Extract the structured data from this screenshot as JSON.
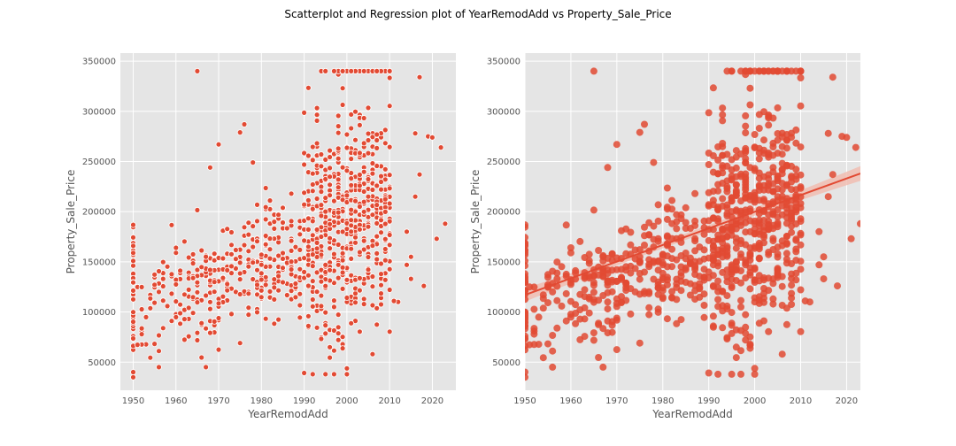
{
  "figure": {
    "suptitle": "Scatterplot and Regression plot of YearRemodAdd vs Property_Sale_Price"
  },
  "colors": {
    "background": "#e5e5e5",
    "grid": "#ffffff",
    "point_fill": "#e24a33",
    "point_edge": "#ffffff",
    "regression_line": "#e24a33",
    "confidence_band": "#f2b7a9"
  },
  "chart_data": [
    {
      "type": "scatter",
      "title": "",
      "xlabel": "YearRemodAdd",
      "ylabel": "Property_Sale_Price",
      "xlim": [
        1947,
        2025.5
      ],
      "ylim": [
        22000,
        358000
      ],
      "xticks": [
        1950,
        1960,
        1970,
        1980,
        1990,
        2000,
        2010,
        2020
      ],
      "yticks": [
        50000,
        100000,
        150000,
        200000,
        250000,
        300000,
        350000
      ],
      "grid": true,
      "legend": "none",
      "marker_edge": "white"
    },
    {
      "type": "scatter",
      "title": "",
      "xlabel": "YearRemodAdd",
      "ylabel": "Property_Sale_Price",
      "xlim": [
        1950,
        2023
      ],
      "ylim": [
        22000,
        358000
      ],
      "xticks": [
        1950,
        1960,
        1970,
        1980,
        1990,
        2000,
        2010,
        2020
      ],
      "yticks": [
        50000,
        100000,
        150000,
        200000,
        250000,
        300000,
        350000
      ],
      "grid": true,
      "legend": "none",
      "regression": {
        "x": [
          1950,
          2023
        ],
        "y": [
          117000,
          238000
        ],
        "confidence_band": true
      }
    }
  ]
}
